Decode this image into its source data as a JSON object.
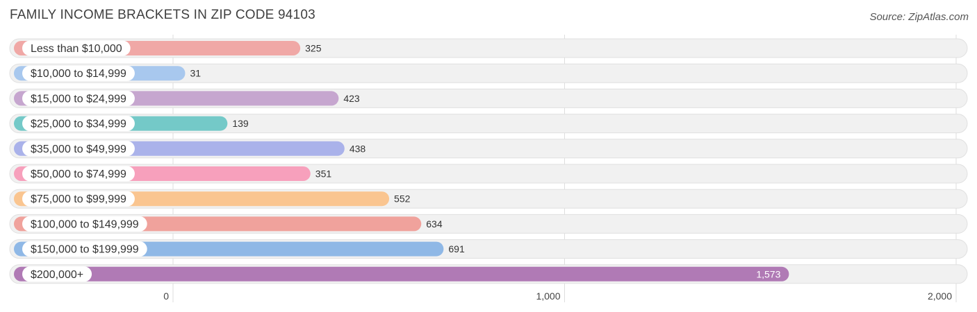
{
  "header": {
    "title": "FAMILY INCOME BRACKETS IN ZIP CODE 94103",
    "source": "Source: ZipAtlas.com"
  },
  "chart_data": {
    "type": "bar",
    "orientation": "horizontal",
    "title": "FAMILY INCOME BRACKETS IN ZIP CODE 94103",
    "xlabel": "",
    "ylabel": "",
    "xlim": [
      0,
      2000
    ],
    "grid": true,
    "legend": "none",
    "categories": [
      "Less than $10,000",
      "$10,000 to $14,999",
      "$15,000 to $24,999",
      "$25,000 to $34,999",
      "$35,000 to $49,999",
      "$50,000 to $74,999",
      "$75,000 to $99,999",
      "$100,000 to $149,999",
      "$150,000 to $199,999",
      "$200,000+"
    ],
    "values": [
      325,
      31,
      423,
      139,
      438,
      351,
      552,
      634,
      691,
      1573
    ],
    "value_labels": [
      "325",
      "31",
      "423",
      "139",
      "438",
      "351",
      "552",
      "634",
      "691",
      "1,573"
    ],
    "colors": [
      "#f0a8a6",
      "#a8c8ee",
      "#c6a6cf",
      "#74c9c8",
      "#aab2ea",
      "#f7a0bc",
      "#fac590",
      "#f0a29c",
      "#8fb8e6",
      "#b07ab5"
    ],
    "ticks": [
      {
        "value": 0,
        "label": "0"
      },
      {
        "value": 1000,
        "label": "1,000"
      },
      {
        "value": 2000,
        "label": "2,000"
      }
    ]
  }
}
